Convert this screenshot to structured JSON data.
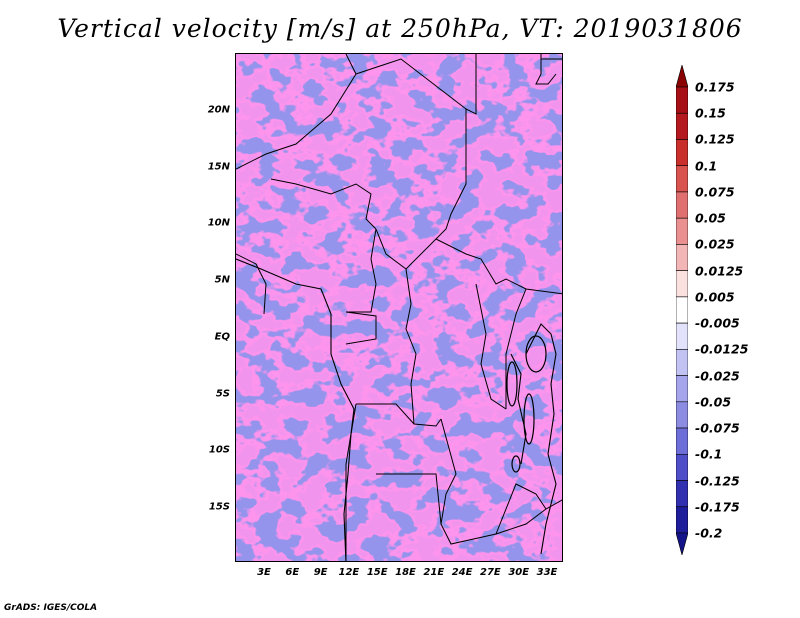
{
  "title": "Vertical velocity [m/s] at 250hPa, VT: 2019031806",
  "map": {
    "lat_labels": [
      "20N",
      "15N",
      "10N",
      "5N",
      "EQ",
      "5S",
      "10S",
      "15S"
    ],
    "lon_labels": [
      "3E",
      "6E",
      "9E",
      "12E",
      "15E",
      "18E",
      "21E",
      "24E",
      "27E",
      "30E",
      "33E"
    ],
    "field_pattern": "noisy alternating positive (red) and negative (blue) vertical velocity cells with country borders and coastlines"
  },
  "colorbar": {
    "labels": [
      "0.175",
      "0.15",
      "0.125",
      "0.1",
      "0.075",
      "0.05",
      "0.025",
      "0.0125",
      "0.005",
      "-0.005",
      "-0.0125",
      "-0.025",
      "-0.05",
      "-0.075",
      "-0.1",
      "-0.125",
      "-0.175",
      "-0.2"
    ],
    "colors": [
      "#8b0000",
      "#a50f15",
      "#b3191f",
      "#c9302c",
      "#d9534f",
      "#e07070",
      "#ea9090",
      "#f3b6b6",
      "#fbe0e0",
      "#ffffff",
      "#e2e2fb",
      "#c2c2f3",
      "#a5a5ec",
      "#8c8ce3",
      "#6e6ed8",
      "#4e4ec8",
      "#3030b0",
      "#1e1e9a",
      "#14148a"
    ]
  },
  "credit": "GrADS: IGES/COLA"
}
